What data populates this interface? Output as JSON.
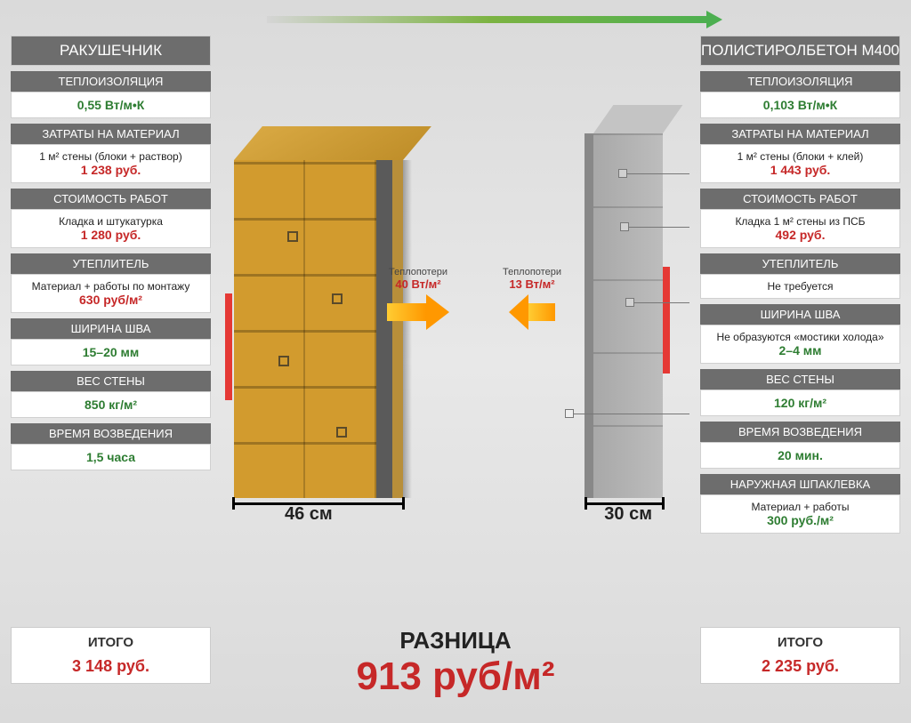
{
  "colors": {
    "header_bg": "#6d6d6d",
    "green": "#2e7d32",
    "red": "#c62828",
    "brick": "#d29b2e",
    "concrete": "#bdbdbd",
    "arrow_gradient": [
      "#ffcc33",
      "#ff9800"
    ]
  },
  "left": {
    "title": "РАКУШЕЧНИК",
    "sections": [
      {
        "header": "ТЕПЛОИЗОЛЯЦИЯ",
        "desc": "",
        "value": "0,55 Вт/м•К",
        "value_class": "val-green"
      },
      {
        "header": "ЗАТРАТЫ НА МАТЕРИАЛ",
        "desc": "1 м² стены (блоки + раствор)",
        "value": "1 238 руб.",
        "value_class": "val-red"
      },
      {
        "header": "СТОИМОСТЬ РАБОТ",
        "desc": "Кладка и штукатурка",
        "value": "1 280 руб.",
        "value_class": "val-red"
      },
      {
        "header": "УТЕПЛИТЕЛЬ",
        "desc": "Материал + работы по монтажу",
        "value": "630 руб/м²",
        "value_class": "val-red"
      },
      {
        "header": "ШИРИНА ШВА",
        "desc": "",
        "value": "15–20 мм",
        "value_class": "val-green"
      },
      {
        "header": "ВЕС СТЕНЫ",
        "desc": "",
        "value": "850 кг/м²",
        "value_class": "val-green"
      },
      {
        "header": "ВРЕМЯ ВОЗВЕДЕНИЯ",
        "desc": "",
        "value": "1,5 часа",
        "value_class": "val-green"
      }
    ],
    "width_label": "46 см",
    "heat_loss_label": "Теплопотери",
    "heat_loss_value": "40 Вт/м²",
    "total_label": "ИТОГО",
    "total_value": "3 148 руб."
  },
  "right": {
    "title": "ПОЛИСТИРОЛБЕТОН М400",
    "sections": [
      {
        "header": "ТЕПЛОИЗОЛЯЦИЯ",
        "desc": "",
        "value": "0,103  Вт/м•К",
        "value_class": "val-green"
      },
      {
        "header": "ЗАТРАТЫ НА МАТЕРИАЛ",
        "desc": "1 м² стены (блоки + клей)",
        "value": "1 443 руб.",
        "value_class": "val-red"
      },
      {
        "header": "СТОИМОСТЬ РАБОТ",
        "desc": "Кладка 1 м² стены из ПСБ",
        "value": "492 руб.",
        "value_class": "val-red"
      },
      {
        "header": "УТЕПЛИТЕЛЬ",
        "desc": "Не требуется",
        "value": "",
        "value_class": ""
      },
      {
        "header": "ШИРИНА ШВА",
        "desc": "Не образуются «мостики холода»",
        "value": "2–4 мм",
        "value_class": "val-green"
      },
      {
        "header": "ВЕС СТЕНЫ",
        "desc": "",
        "value": "120 кг/м²",
        "value_class": "val-green"
      },
      {
        "header": "ВРЕМЯ ВОЗВЕДЕНИЯ",
        "desc": "",
        "value": "20 мин.",
        "value_class": "val-green"
      },
      {
        "header": "НАРУЖНАЯ ШПАКЛЕВКА",
        "desc": "Материал + работы",
        "value": "300 руб./м²",
        "value_class": "val-green"
      }
    ],
    "width_label": "30 см",
    "heat_loss_label": "Теплопотери",
    "heat_loss_value": "13 Вт/м²",
    "total_label": "ИТОГО",
    "total_value": "2 235 руб."
  },
  "diff": {
    "label": "РАЗНИЦА",
    "value": "913 руб/м²"
  }
}
